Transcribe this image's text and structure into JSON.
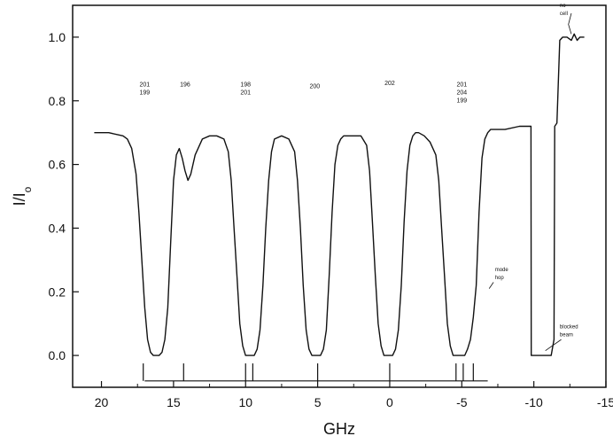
{
  "chart_data": {
    "type": "line",
    "title": "",
    "xlabel": "GHz",
    "ylabel": "I/I",
    "ylabel_sub": "o",
    "xlim": [
      22,
      -15
    ],
    "ylim": [
      -0.1,
      1.1
    ],
    "x_reversed": true,
    "x_ticks": [
      20,
      15,
      10,
      5,
      0,
      -5,
      -10,
      -15
    ],
    "x_tick_labels": [
      "20",
      "15",
      "10",
      "5",
      "0",
      "-5",
      "-10",
      "-15"
    ],
    "y_ticks": [
      0.0,
      0.2,
      0.4,
      0.6,
      0.8,
      1.0
    ],
    "y_tick_labels": [
      "0.0",
      "0.2",
      "0.4",
      "0.6",
      "0.8",
      "1.0"
    ],
    "grid": false,
    "series": [
      {
        "x": [
          20.5,
          19.5,
          18.5,
          18.2,
          17.9,
          17.6,
          17.4,
          17.2,
          17.0,
          16.8,
          16.6,
          16.4,
          16.2,
          16.0,
          15.8,
          15.6,
          15.4,
          15.2,
          15.0,
          14.8,
          14.6,
          14.4,
          14.2,
          14.0,
          13.8,
          13.5,
          13.0,
          12.5,
          12.0,
          11.5,
          11.2,
          11.0,
          10.8,
          10.6,
          10.4,
          10.2,
          10.0,
          9.8,
          9.6,
          9.4,
          9.2,
          9.0,
          8.8,
          8.6,
          8.4,
          8.2,
          8.0,
          7.5,
          7.0,
          6.6,
          6.4,
          6.2,
          6.0,
          5.8,
          5.6,
          5.4,
          5.2,
          5.0,
          4.8,
          4.6,
          4.4,
          4.2,
          4.0,
          3.8,
          3.6,
          3.4,
          3.2,
          3.0,
          2.5,
          2.0,
          1.6,
          1.4,
          1.2,
          1.0,
          0.8,
          0.6,
          0.4,
          0.2,
          0.0,
          -0.2,
          -0.4,
          -0.6,
          -0.8,
          -1.0,
          -1.2,
          -1.4,
          -1.6,
          -1.8,
          -2.0,
          -2.4,
          -2.8,
          -3.2,
          -3.4,
          -3.6,
          -3.8,
          -4.0,
          -4.2,
          -4.4,
          -4.6,
          -4.8,
          -5.0,
          -5.2,
          -5.4,
          -5.6,
          -5.8,
          -6.0,
          -6.2,
          -6.4,
          -6.6,
          -6.8,
          -7.0,
          -7.5,
          -8.0,
          -9.0,
          -9.8,
          -9.82,
          -11.2,
          -11.4,
          -11.45,
          -11.6,
          -11.8,
          -12.0,
          -12.3,
          -12.6,
          -12.8,
          -13.0,
          -13.2,
          -13.5
        ],
        "y": [
          0.7,
          0.7,
          0.69,
          0.68,
          0.65,
          0.57,
          0.45,
          0.3,
          0.15,
          0.05,
          0.01,
          0.0,
          0.0,
          0.0,
          0.01,
          0.05,
          0.15,
          0.35,
          0.55,
          0.63,
          0.65,
          0.62,
          0.58,
          0.55,
          0.57,
          0.63,
          0.68,
          0.69,
          0.69,
          0.68,
          0.64,
          0.55,
          0.4,
          0.25,
          0.1,
          0.03,
          0.0,
          0.0,
          0.0,
          0.0,
          0.02,
          0.08,
          0.22,
          0.4,
          0.55,
          0.64,
          0.68,
          0.69,
          0.68,
          0.64,
          0.55,
          0.4,
          0.22,
          0.08,
          0.02,
          0.0,
          0.0,
          0.0,
          0.0,
          0.02,
          0.08,
          0.25,
          0.45,
          0.6,
          0.66,
          0.68,
          0.69,
          0.69,
          0.69,
          0.69,
          0.66,
          0.58,
          0.42,
          0.25,
          0.1,
          0.03,
          0.0,
          0.0,
          0.0,
          0.0,
          0.02,
          0.08,
          0.22,
          0.42,
          0.58,
          0.66,
          0.69,
          0.7,
          0.7,
          0.69,
          0.67,
          0.63,
          0.55,
          0.4,
          0.25,
          0.1,
          0.03,
          0.0,
          0.0,
          0.0,
          0.0,
          0.0,
          0.02,
          0.05,
          0.12,
          0.22,
          0.45,
          0.62,
          0.68,
          0.7,
          0.71,
          0.71,
          0.71,
          0.72,
          0.72,
          0.0,
          0.0,
          0.05,
          0.72,
          0.73,
          0.99,
          1.0,
          1.0,
          0.99,
          1.01,
          0.99,
          1.0,
          1.0
        ]
      }
    ],
    "marker_lines": [
      17.1,
      14.3,
      10.0,
      9.5,
      5.0,
      0.0,
      -4.6,
      -5.1,
      -5.8
    ],
    "marker_baseline": [
      17.0,
      -6.8
    ],
    "annotations": [
      {
        "x": 17.0,
        "y": 0.845,
        "text": "201"
      },
      {
        "x": 17.0,
        "y": 0.82,
        "text": "199"
      },
      {
        "x": 14.2,
        "y": 0.845,
        "text": "196"
      },
      {
        "x": 10.0,
        "y": 0.845,
        "text": "198"
      },
      {
        "x": 10.0,
        "y": 0.82,
        "text": "201"
      },
      {
        "x": 5.2,
        "y": 0.84,
        "text": "200"
      },
      {
        "x": 0.0,
        "y": 0.85,
        "text": "202"
      },
      {
        "x": -5.0,
        "y": 0.845,
        "text": "201"
      },
      {
        "x": -5.0,
        "y": 0.82,
        "text": "204"
      },
      {
        "x": -5.0,
        "y": 0.795,
        "text": "199"
      },
      {
        "x": -7.3,
        "y": 0.265,
        "text": "mode"
      },
      {
        "x": -7.3,
        "y": 0.24,
        "text": "hop"
      },
      {
        "x": -11.8,
        "y": 1.095,
        "text": "no"
      },
      {
        "x": -11.8,
        "y": 1.07,
        "text": "cell"
      },
      {
        "x": -11.8,
        "y": 0.085,
        "text": "blocked"
      },
      {
        "x": -11.8,
        "y": 0.06,
        "text": "beam"
      }
    ]
  }
}
